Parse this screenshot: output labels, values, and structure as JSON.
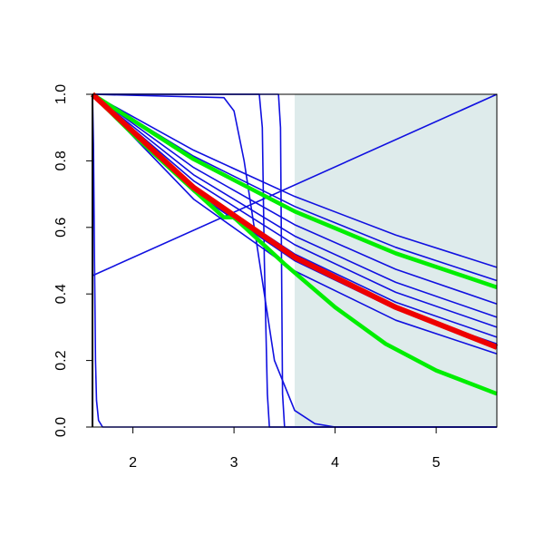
{
  "chart_data": {
    "type": "line",
    "xlim": [
      1.6,
      5.6
    ],
    "ylim": [
      0,
      1
    ],
    "xticks": [
      2,
      3,
      4,
      5
    ],
    "yticks": [
      {
        "value": 0,
        "label": "0.0"
      },
      0.2,
      0.4,
      0.6,
      0.8,
      {
        "value": 1,
        "label": "1.0"
      }
    ],
    "shaded_region": {
      "x": [
        3.6,
        5.6
      ],
      "color": "#deebeb"
    },
    "series": [
      {
        "color": "#1010e0",
        "line_width": 1.6,
        "x": [
          1.6,
          5.6
        ],
        "values": [
          0.455,
          1.0
        ]
      },
      {
        "color": "#1010e0",
        "line_width": 1.6,
        "x": [
          1.6,
          1.61,
          1.62,
          1.63,
          1.64,
          1.66,
          1.7,
          5.6
        ],
        "values": [
          1.0,
          0.85,
          0.5,
          0.2,
          0.08,
          0.02,
          0,
          0
        ]
      },
      {
        "color": "#1010e0",
        "line_width": 1.6,
        "x": [
          1.6,
          3.25,
          3.28,
          3.3,
          3.33,
          3.35,
          5.6
        ],
        "values": [
          1,
          1,
          0.9,
          0.5,
          0.1,
          0,
          0
        ]
      },
      {
        "color": "#1010e0",
        "line_width": 1.6,
        "x": [
          1.6,
          3.44,
          3.46,
          3.47,
          3.48,
          3.5,
          5.6
        ],
        "values": [
          1,
          1,
          0.9,
          0.5,
          0.1,
          0,
          0
        ]
      },
      {
        "color": "#1010e0",
        "line_width": 1.6,
        "x": [
          1.6,
          2.9,
          3.0,
          3.1,
          3.25,
          3.4,
          3.6,
          3.8,
          4.0,
          5.6
        ],
        "values": [
          1,
          0.99,
          0.95,
          0.8,
          0.5,
          0.2,
          0.05,
          0.01,
          0,
          0
        ]
      },
      {
        "color": "#1010e0",
        "line_width": 1.6,
        "x": [
          1.6,
          2.6,
          3.6,
          4.6,
          5.6
        ],
        "values": [
          1,
          0.832,
          0.693,
          0.577,
          0.48
        ]
      },
      {
        "color": "#1010e0",
        "line_width": 1.6,
        "x": [
          1.6,
          2.6,
          3.6,
          4.6,
          5.6
        ],
        "values": [
          1,
          0.814,
          0.663,
          0.54,
          0.44
        ]
      },
      {
        "color": "#1010e0",
        "line_width": 1.6,
        "x": [
          1.6,
          2.6,
          3.6,
          4.6,
          5.6
        ],
        "values": [
          1,
          0.78,
          0.608,
          0.474,
          0.37
        ]
      },
      {
        "color": "#1010e0",
        "line_width": 1.6,
        "x": [
          1.6,
          2.6,
          3.6,
          4.6,
          5.6
        ],
        "values": [
          1,
          0.758,
          0.574,
          0.435,
          0.33
        ]
      },
      {
        "color": "#1010e0",
        "line_width": 1.6,
        "x": [
          1.6,
          2.6,
          3.6,
          4.6,
          5.6
        ],
        "values": [
          1,
          0.74,
          0.548,
          0.405,
          0.3
        ]
      },
      {
        "color": "#1010e0",
        "line_width": 1.6,
        "x": [
          1.6,
          2.6,
          3.6,
          4.6,
          5.6
        ],
        "values": [
          1,
          0.721,
          0.52,
          0.375,
          0.27
        ]
      },
      {
        "color": "#1010e0",
        "line_width": 1.6,
        "x": [
          1.6,
          2.6,
          3.6,
          4.6,
          5.6
        ],
        "values": [
          1,
          0.707,
          0.5,
          0.354,
          0.25
        ]
      },
      {
        "color": "#1010e0",
        "line_width": 1.6,
        "x": [
          1.6,
          2.6,
          3.6,
          4.6,
          5.6
        ],
        "values": [
          1,
          0.685,
          0.469,
          0.321,
          0.22
        ]
      },
      {
        "color": "#00ee00",
        "line_width": 4.5,
        "x": [
          1.6,
          2.6,
          3.6,
          4.6,
          5.6
        ],
        "values": [
          1,
          0.805,
          0.648,
          0.522,
          0.42
        ]
      },
      {
        "color": "#00ee00",
        "line_width": 4.5,
        "x": [
          1.6,
          2.0,
          2.5,
          2.9,
          3.0,
          3.5,
          4.0,
          4.5,
          5.0,
          5.6
        ],
        "values": [
          1,
          0.88,
          0.74,
          0.63,
          0.63,
          0.49,
          0.36,
          0.25,
          0.17,
          0.1
        ]
      },
      {
        "color": "#ee0000",
        "line_width": 6,
        "x": [
          1.6,
          2.6,
          3.6,
          4.6,
          5.6
        ],
        "values": [
          1,
          0.72,
          0.51,
          0.36,
          0.24
        ]
      }
    ]
  }
}
